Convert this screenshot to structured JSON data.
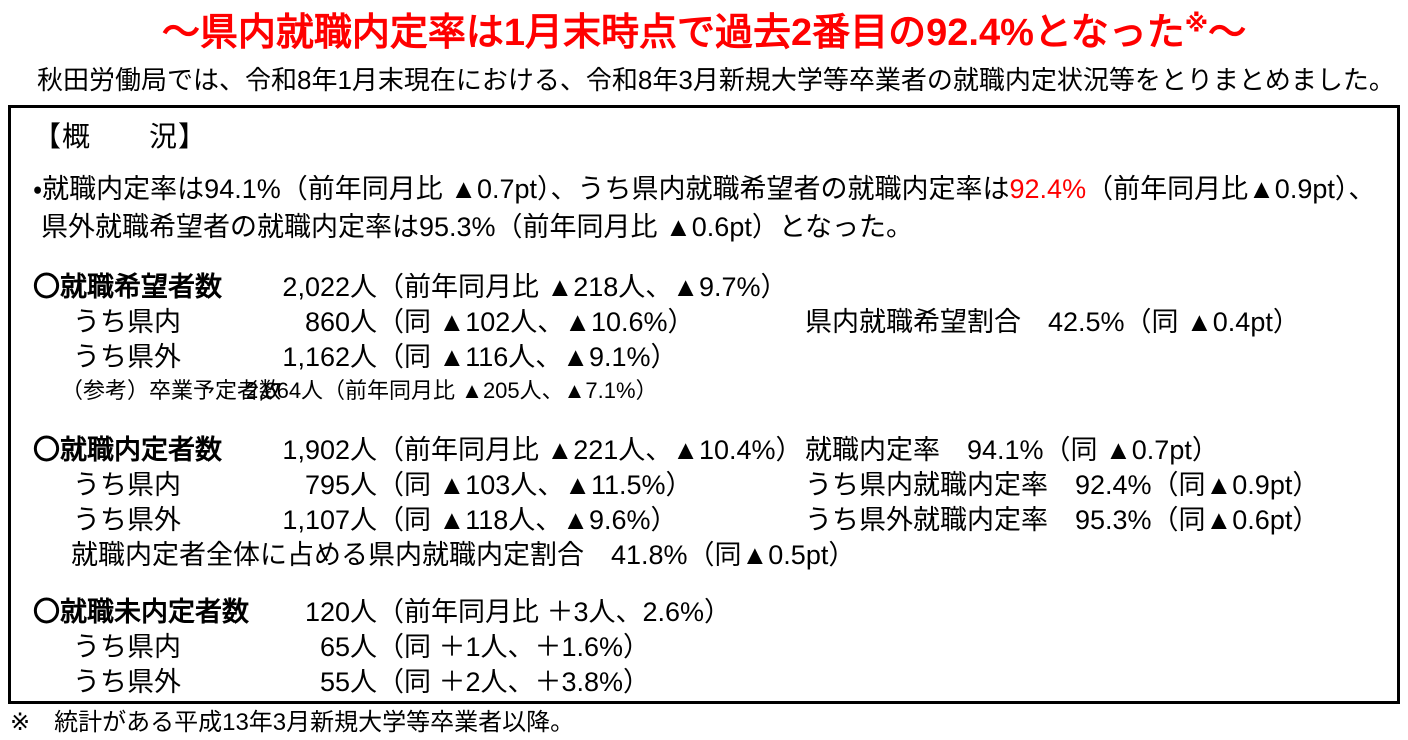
{
  "colors": {
    "accent_red": "#ff0000",
    "text": "#000000",
    "box_border": "#000000"
  },
  "title": {
    "text": "～県内就職内定率は1月末時点で過去2番目の92.4%となった",
    "sup": "※",
    "tail": "～"
  },
  "intro": "秋田労働局では、令和8年1月末現在における、令和8年3月新規大学等卒業者の就職内定状況等をとりまとめました。",
  "overview": {
    "heading": "【概　　況】",
    "summary": {
      "before": "・就職内定率は94.1%（前年同月比 ▲0.7pt）、うち県内就職希望者の就職内定率は",
      "highlight": "92.4%",
      "after": "（前年同月比▲0.9pt）、",
      "line2": "県外就職希望者の就職内定率は95.3%（前年同月比 ▲0.6pt）となった。"
    }
  },
  "sections": {
    "applicants": {
      "header": {
        "label": "〇就職希望者数",
        "num": "2,022人",
        "rest": "（前年同月比 ▲218人、▲9.7%）",
        "right": ""
      },
      "rows": [
        {
          "label": "うち県内",
          "num": "860人",
          "rest": "（同 ▲102人、▲10.6%）",
          "right": "県内就職希望割合　42.5%（同 ▲0.4pt）"
        },
        {
          "label": "うち県外",
          "num": "1,162人",
          "rest": "（同 ▲116人、▲9.1%）",
          "right": ""
        }
      ],
      "reference": {
        "label": "（参考）卒業予定者数",
        "value": "2,664人（前年同月比 ▲205人、▲7.1%）"
      }
    },
    "offers": {
      "header": {
        "label": "〇就職内定者数",
        "num": "1,902人",
        "rest": "（前年同月比 ▲221人、▲10.4%）",
        "right": "就職内定率　94.1%（同 ▲0.7pt）"
      },
      "rows": [
        {
          "label": "うち県内",
          "num": "795人",
          "rest": "（同 ▲103人、▲11.5%）",
          "right": "うち県内就職内定率　92.4%（同▲0.9pt）"
        },
        {
          "label": "うち県外",
          "num": "1,107人",
          "rest": "（同 ▲118人、▲9.6%）",
          "right": "うち県外就職内定率　95.3%（同▲0.6pt）"
        }
      ],
      "tail": "就職内定者全体に占める県内就職内定割合　41.8%（同▲0.5pt）"
    },
    "pending": {
      "header": {
        "label": "〇就職未内定者数",
        "num": "120人",
        "rest": "（前年同月比 ＋3人、2.6%）",
        "right": ""
      },
      "rows": [
        {
          "label": "うち県内",
          "num": "65人",
          "rest": "（同 ＋1人、＋1.6%）",
          "right": ""
        },
        {
          "label": "うち県外",
          "num": "55人",
          "rest": "（同 ＋2人、＋3.8%）",
          "right": ""
        }
      ]
    }
  },
  "footnote": "※　統計がある平成13年3月新規大学等卒業者以降。"
}
